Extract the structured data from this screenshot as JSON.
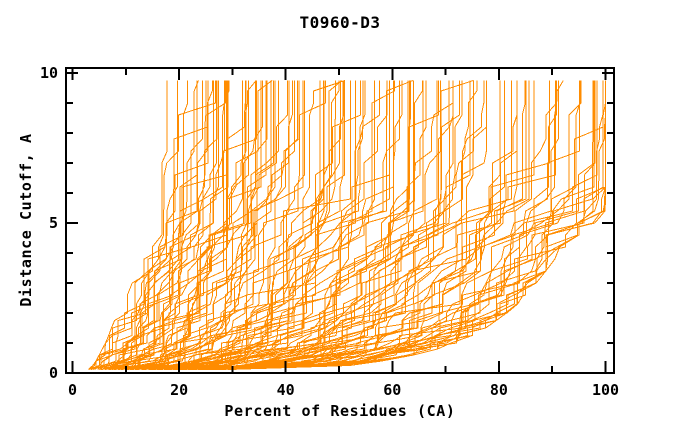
{
  "chart_data": {
    "type": "line",
    "title": "T0960-D3",
    "xlabel": "Percent of Residues (CA)",
    "ylabel": "Distance Cutoff, A",
    "xlim": [
      -1.2,
      101.6
    ],
    "ylim": [
      0,
      10.17
    ],
    "x_ticks_major": [
      0,
      20,
      40,
      60,
      80,
      100
    ],
    "x_ticks_minor": [
      10,
      30,
      50,
      70,
      90
    ],
    "x_tick_labels": [
      "0",
      "20",
      "40",
      "60",
      "80",
      "100"
    ],
    "y_ticks_major": [
      0,
      5,
      10
    ],
    "y_ticks_minor": [
      1,
      2,
      3,
      4,
      6,
      7,
      8,
      9
    ],
    "y_tick_labels": [
      "0",
      "5",
      "10"
    ],
    "grid": false,
    "legend": "none",
    "line_color": "#ff8c00",
    "axis_color": "#000000",
    "background_color": "#ffffff",
    "curves": {
      "note": "Dense bundle of overlapping model curves (percent of CA residues under each distance cutoff); individual series not resolvable, approximated from envelopes.",
      "series_count": 130,
      "cutoff_levels": [
        0.12,
        0.25,
        0.4,
        0.6,
        0.8,
        1.0,
        1.25,
        1.5,
        1.75,
        2.0,
        2.3,
        2.6,
        3.0,
        3.4,
        3.8,
        4.2,
        4.6,
        5.0,
        5.4,
        5.8,
        6.2,
        6.6,
        7.0,
        7.4,
        7.8,
        8.2,
        8.6,
        9.0,
        9.4,
        9.75
      ],
      "envelope_best_percent": [
        3.0,
        3.8,
        4.4,
        5.0,
        5.6,
        6.2,
        6.8,
        7.3,
        7.9,
        8.4,
        9.2,
        10.0,
        11.2,
        12.4,
        13.4,
        14.3,
        14.8,
        15.1,
        15.3,
        15.5,
        15.6,
        15.7,
        15.8,
        15.9,
        16.0,
        16.0,
        16.1,
        16.1,
        16.2,
        16.2
      ],
      "envelope_worst_percent": [
        30,
        52,
        58,
        64,
        68.5,
        72,
        75,
        77.5,
        79.5,
        81.5,
        83.5,
        85,
        87,
        88.8,
        90.5,
        92.5,
        95,
        98,
        100,
        100,
        100,
        100,
        100,
        100,
        100,
        100,
        100,
        100,
        100,
        100
      ],
      "curve_top_cutoff": 9.75,
      "quality_exponent": 1.22,
      "noise": 0.11,
      "seed": 7
    }
  }
}
